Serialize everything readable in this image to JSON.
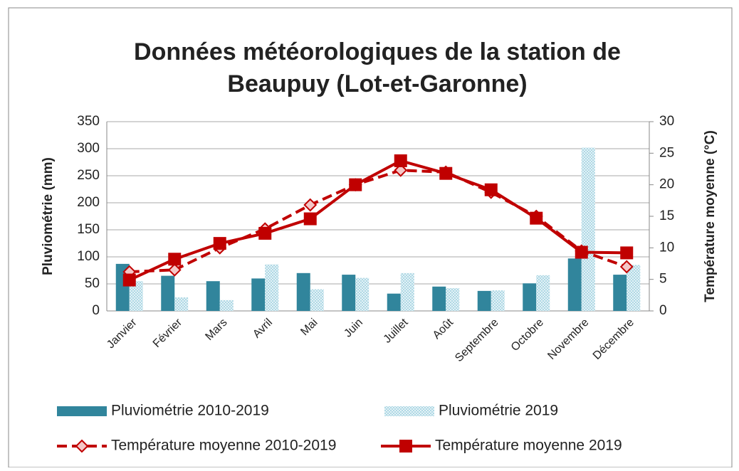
{
  "chart_data": {
    "type": "combo",
    "title": [
      "Données météorologiques de la station de",
      "Beaupuy (Lot-et-Garonne)"
    ],
    "y_label": "Pluviométrie (mm)",
    "y2_label": "Température moyenne (°C)",
    "categories": [
      "Janvier",
      "Février",
      "Mars",
      "Avril",
      "Mai",
      "Juin",
      "Juillet",
      "Août",
      "Septembre",
      "Octobre",
      "Novembre",
      "Décembre"
    ],
    "series": [
      {
        "name": "Pluviométrie 2010-2019",
        "type": "bar",
        "color": "#31859c",
        "values": [
          87,
          65,
          55,
          60,
          70,
          67,
          32,
          45,
          37,
          51,
          97,
          67
        ]
      },
      {
        "name": "Pluviométrie 2019",
        "type": "bar",
        "color": "#b7dde8",
        "values": [
          55,
          25,
          20,
          86,
          40,
          61,
          70,
          42,
          38,
          66,
          302,
          85
        ]
      },
      {
        "name": "Température moyenne 2010-2019",
        "type": "line",
        "dashed": true,
        "color": "#c00000",
        "axis": "y2",
        "values": [
          6.2,
          6.5,
          10,
          13,
          16.8,
          20,
          22.3,
          22,
          18.8,
          15,
          9.5,
          7
        ]
      },
      {
        "name": "Température moyenne 2019",
        "type": "line",
        "dashed": false,
        "color": "#c00000",
        "axis": "y2",
        "values": [
          4.9,
          8.2,
          10.7,
          12.3,
          14.6,
          20,
          23.8,
          21.8,
          19.2,
          14.7,
          9.3,
          9.2
        ]
      }
    ],
    "ylim": [
      0,
      350
    ],
    "yticks": [
      0,
      50,
      100,
      150,
      200,
      250,
      300,
      350
    ],
    "y2lim": [
      0,
      30
    ],
    "y2ticks": [
      0,
      5,
      10,
      15,
      20,
      25,
      30
    ],
    "grid": true
  }
}
